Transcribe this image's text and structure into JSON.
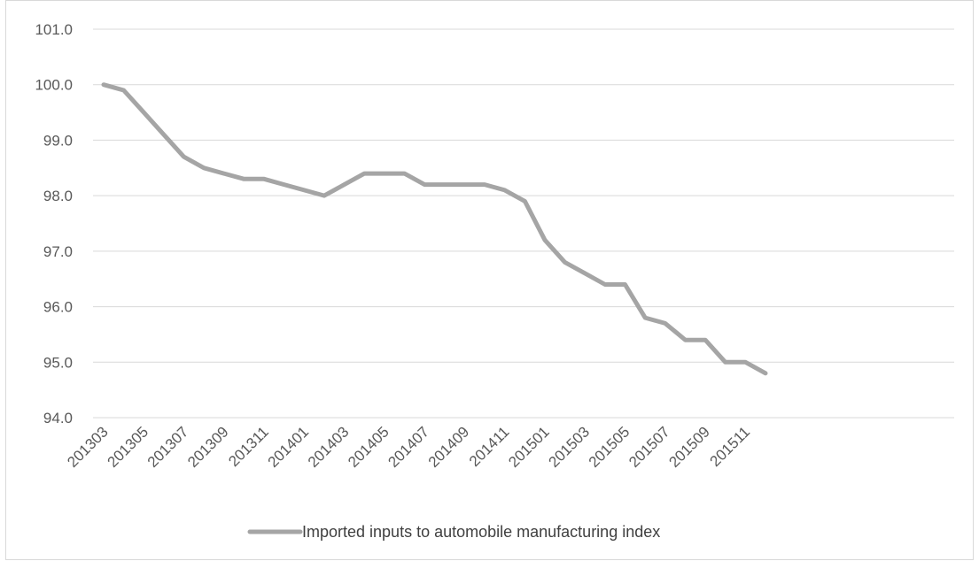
{
  "chart_data": {
    "type": "line",
    "title": "",
    "xlabel": "",
    "ylabel": "",
    "ylim": [
      94.0,
      101.0
    ],
    "y_ticks": [
      "94.0",
      "95.0",
      "96.0",
      "97.0",
      "98.0",
      "99.0",
      "100.0",
      "101.0"
    ],
    "x": [
      "201303",
      "201304",
      "201305",
      "201306",
      "201307",
      "201308",
      "201309",
      "201310",
      "201311",
      "201312",
      "201401",
      "201402",
      "201403",
      "201404",
      "201405",
      "201406",
      "201407",
      "201408",
      "201409",
      "201410",
      "201411",
      "201412",
      "201501",
      "201502",
      "201503",
      "201504",
      "201505",
      "201506",
      "201507",
      "201508",
      "201509",
      "201510",
      "201511",
      "201512"
    ],
    "x_tick_labels": [
      "201303",
      "201305",
      "201307",
      "201309",
      "201311",
      "201401",
      "201403",
      "201405",
      "201407",
      "201409",
      "201411",
      "201501",
      "201503",
      "201505",
      "201507",
      "201509",
      "201511"
    ],
    "grid": true,
    "legend_position": "bottom",
    "series": [
      {
        "name": "Imported inputs to automobile manufacturing index",
        "color": "#a5a5a5",
        "values": [
          100.0,
          99.9,
          99.5,
          99.1,
          98.7,
          98.5,
          98.4,
          98.3,
          98.3,
          98.2,
          98.1,
          98.0,
          98.2,
          98.4,
          98.4,
          98.4,
          98.2,
          98.2,
          98.2,
          98.2,
          98.1,
          97.9,
          97.2,
          96.8,
          96.6,
          96.4,
          96.4,
          95.8,
          95.7,
          95.4,
          95.4,
          95.0,
          95.0,
          94.8
        ]
      }
    ],
    "gridline_color": "#d9d9d9"
  }
}
